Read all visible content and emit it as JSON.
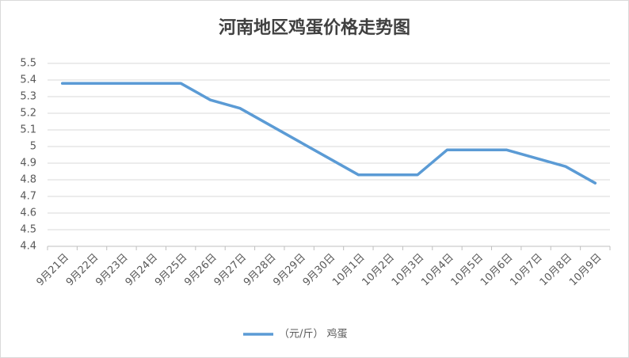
{
  "chart_data": {
    "type": "line",
    "title": "河南地区鸡蛋价格走势图",
    "categories": [
      "9月21日",
      "9月22日",
      "9月23日",
      "9月24日",
      "9月25日",
      "9月26日",
      "9月27日",
      "9月28日",
      "9月29日",
      "9月30日",
      "10月1日",
      "10月2日",
      "10月3日",
      "10月4日",
      "10月5日",
      "10月6日",
      "10月7日",
      "10月8日",
      "10月9日"
    ],
    "series": [
      {
        "name": "（元/斤） 鸡蛋",
        "color": "#5b9bd5",
        "values": [
          5.38,
          5.38,
          5.38,
          5.38,
          5.38,
          5.28,
          5.23,
          5.13,
          5.03,
          4.93,
          4.83,
          4.83,
          4.83,
          4.98,
          4.98,
          4.98,
          4.93,
          4.88,
          4.78
        ]
      }
    ],
    "ylim": [
      4.4,
      5.5
    ],
    "yticks": [
      4.4,
      4.5,
      4.6,
      4.7,
      4.8,
      4.9,
      5,
      5.1,
      5.2,
      5.3,
      5.4,
      5.5
    ],
    "grid": true,
    "legend": "bottom"
  }
}
